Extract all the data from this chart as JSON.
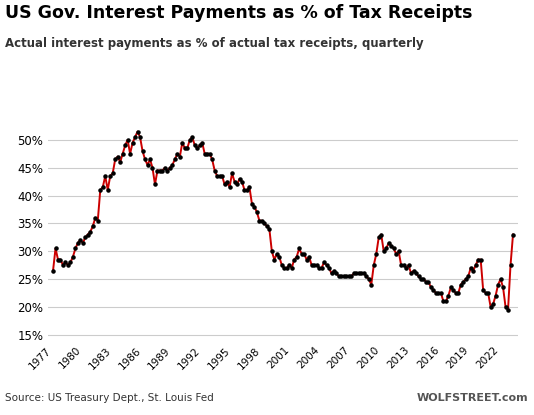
{
  "title": "US Gov. Interest Payments as % of Tax Receipts",
  "subtitle": "Actual interest payments as % of actual tax receipts, quarterly",
  "source": "Source: US Treasury Dept., St. Louis Fed",
  "watermark": "WOLFSTREET.com",
  "line_color": "#CC0000",
  "dot_color": "#000000",
  "background_color": "#ffffff",
  "ylim": [
    14,
    55
  ],
  "yticks": [
    15,
    20,
    25,
    30,
    35,
    40,
    45,
    50
  ],
  "xtick_years": [
    1977,
    1980,
    1983,
    1986,
    1989,
    1992,
    1995,
    1998,
    2001,
    2004,
    2007,
    2010,
    2013,
    2016,
    2019,
    2022
  ],
  "xlim": [
    1976.5,
    2023.75
  ],
  "data": [
    [
      1977.0,
      26.5
    ],
    [
      1977.25,
      30.5
    ],
    [
      1977.5,
      28.5
    ],
    [
      1977.75,
      28.5
    ],
    [
      1978.0,
      27.5
    ],
    [
      1978.25,
      28.0
    ],
    [
      1978.5,
      27.5
    ],
    [
      1978.75,
      28.0
    ],
    [
      1979.0,
      29.0
    ],
    [
      1979.25,
      30.5
    ],
    [
      1979.5,
      31.5
    ],
    [
      1979.75,
      32.0
    ],
    [
      1980.0,
      31.5
    ],
    [
      1980.25,
      32.5
    ],
    [
      1980.5,
      33.0
    ],
    [
      1980.75,
      33.5
    ],
    [
      1981.0,
      34.5
    ],
    [
      1981.25,
      36.0
    ],
    [
      1981.5,
      35.5
    ],
    [
      1981.75,
      41.0
    ],
    [
      1982.0,
      41.5
    ],
    [
      1982.25,
      43.5
    ],
    [
      1982.5,
      41.0
    ],
    [
      1982.75,
      43.5
    ],
    [
      1983.0,
      44.0
    ],
    [
      1983.25,
      46.5
    ],
    [
      1983.5,
      47.0
    ],
    [
      1983.75,
      46.0
    ],
    [
      1984.0,
      47.5
    ],
    [
      1984.25,
      49.0
    ],
    [
      1984.5,
      50.0
    ],
    [
      1984.75,
      47.5
    ],
    [
      1985.0,
      49.5
    ],
    [
      1985.25,
      50.5
    ],
    [
      1985.5,
      51.5
    ],
    [
      1985.75,
      50.5
    ],
    [
      1986.0,
      48.0
    ],
    [
      1986.25,
      46.5
    ],
    [
      1986.5,
      45.5
    ],
    [
      1986.75,
      46.5
    ],
    [
      1987.0,
      45.0
    ],
    [
      1987.25,
      42.0
    ],
    [
      1987.5,
      44.5
    ],
    [
      1987.75,
      44.5
    ],
    [
      1988.0,
      44.5
    ],
    [
      1988.25,
      45.0
    ],
    [
      1988.5,
      44.5
    ],
    [
      1988.75,
      45.0
    ],
    [
      1989.0,
      45.5
    ],
    [
      1989.25,
      46.5
    ],
    [
      1989.5,
      47.5
    ],
    [
      1989.75,
      47.0
    ],
    [
      1990.0,
      49.5
    ],
    [
      1990.25,
      48.5
    ],
    [
      1990.5,
      48.5
    ],
    [
      1990.75,
      50.0
    ],
    [
      1991.0,
      50.5
    ],
    [
      1991.25,
      49.0
    ],
    [
      1991.5,
      48.5
    ],
    [
      1991.75,
      49.0
    ],
    [
      1992.0,
      49.5
    ],
    [
      1992.25,
      47.5
    ],
    [
      1992.5,
      47.5
    ],
    [
      1992.75,
      47.5
    ],
    [
      1993.0,
      46.5
    ],
    [
      1993.25,
      44.5
    ],
    [
      1993.5,
      43.5
    ],
    [
      1993.75,
      43.5
    ],
    [
      1994.0,
      43.5
    ],
    [
      1994.25,
      42.0
    ],
    [
      1994.5,
      42.5
    ],
    [
      1994.75,
      41.5
    ],
    [
      1995.0,
      44.0
    ],
    [
      1995.25,
      42.5
    ],
    [
      1995.5,
      42.0
    ],
    [
      1995.75,
      43.0
    ],
    [
      1996.0,
      42.5
    ],
    [
      1996.25,
      41.0
    ],
    [
      1996.5,
      41.0
    ],
    [
      1996.75,
      41.5
    ],
    [
      1997.0,
      38.5
    ],
    [
      1997.25,
      38.0
    ],
    [
      1997.5,
      37.0
    ],
    [
      1997.75,
      35.5
    ],
    [
      1998.0,
      35.5
    ],
    [
      1998.25,
      35.0
    ],
    [
      1998.5,
      34.5
    ],
    [
      1998.75,
      34.0
    ],
    [
      1999.0,
      30.0
    ],
    [
      1999.25,
      28.5
    ],
    [
      1999.5,
      29.5
    ],
    [
      1999.75,
      29.0
    ],
    [
      2000.0,
      27.5
    ],
    [
      2000.25,
      27.0
    ],
    [
      2000.5,
      27.0
    ],
    [
      2000.75,
      27.5
    ],
    [
      2001.0,
      27.0
    ],
    [
      2001.25,
      28.5
    ],
    [
      2001.5,
      29.0
    ],
    [
      2001.75,
      30.5
    ],
    [
      2002.0,
      29.5
    ],
    [
      2002.25,
      29.5
    ],
    [
      2002.5,
      28.5
    ],
    [
      2002.75,
      29.0
    ],
    [
      2003.0,
      27.5
    ],
    [
      2003.25,
      27.5
    ],
    [
      2003.5,
      27.5
    ],
    [
      2003.75,
      27.0
    ],
    [
      2004.0,
      27.0
    ],
    [
      2004.25,
      28.0
    ],
    [
      2004.5,
      27.5
    ],
    [
      2004.75,
      27.0
    ],
    [
      2005.0,
      26.0
    ],
    [
      2005.25,
      26.5
    ],
    [
      2005.5,
      26.0
    ],
    [
      2005.75,
      25.5
    ],
    [
      2006.0,
      25.5
    ],
    [
      2006.25,
      25.5
    ],
    [
      2006.5,
      25.5
    ],
    [
      2006.75,
      25.5
    ],
    [
      2007.0,
      25.5
    ],
    [
      2007.25,
      26.0
    ],
    [
      2007.5,
      26.0
    ],
    [
      2007.75,
      26.0
    ],
    [
      2008.0,
      26.0
    ],
    [
      2008.25,
      26.0
    ],
    [
      2008.5,
      25.5
    ],
    [
      2008.75,
      25.0
    ],
    [
      2009.0,
      24.0
    ],
    [
      2009.25,
      27.5
    ],
    [
      2009.5,
      29.5
    ],
    [
      2009.75,
      32.5
    ],
    [
      2010.0,
      33.0
    ],
    [
      2010.25,
      30.0
    ],
    [
      2010.5,
      30.5
    ],
    [
      2010.75,
      31.5
    ],
    [
      2011.0,
      31.0
    ],
    [
      2011.25,
      30.5
    ],
    [
      2011.5,
      29.5
    ],
    [
      2011.75,
      30.0
    ],
    [
      2012.0,
      27.5
    ],
    [
      2012.25,
      27.5
    ],
    [
      2012.5,
      27.0
    ],
    [
      2012.75,
      27.5
    ],
    [
      2013.0,
      26.0
    ],
    [
      2013.25,
      26.5
    ],
    [
      2013.5,
      26.0
    ],
    [
      2013.75,
      25.5
    ],
    [
      2014.0,
      25.0
    ],
    [
      2014.25,
      25.0
    ],
    [
      2014.5,
      24.5
    ],
    [
      2014.75,
      24.5
    ],
    [
      2015.0,
      23.5
    ],
    [
      2015.25,
      23.0
    ],
    [
      2015.5,
      22.5
    ],
    [
      2015.75,
      22.5
    ],
    [
      2016.0,
      22.5
    ],
    [
      2016.25,
      21.0
    ],
    [
      2016.5,
      21.0
    ],
    [
      2016.75,
      22.0
    ],
    [
      2017.0,
      23.5
    ],
    [
      2017.25,
      23.0
    ],
    [
      2017.5,
      22.5
    ],
    [
      2017.75,
      22.5
    ],
    [
      2018.0,
      24.0
    ],
    [
      2018.25,
      24.5
    ],
    [
      2018.5,
      25.0
    ],
    [
      2018.75,
      25.5
    ],
    [
      2019.0,
      27.0
    ],
    [
      2019.25,
      26.5
    ],
    [
      2019.5,
      27.5
    ],
    [
      2019.75,
      28.5
    ],
    [
      2020.0,
      28.5
    ],
    [
      2020.25,
      23.0
    ],
    [
      2020.5,
      22.5
    ],
    [
      2020.75,
      22.5
    ],
    [
      2021.0,
      20.0
    ],
    [
      2021.25,
      20.5
    ],
    [
      2021.5,
      22.0
    ],
    [
      2021.75,
      24.0
    ],
    [
      2022.0,
      25.0
    ],
    [
      2022.25,
      23.5
    ],
    [
      2022.5,
      20.0
    ],
    [
      2022.75,
      19.5
    ],
    [
      2023.0,
      27.5
    ],
    [
      2023.25,
      33.0
    ]
  ]
}
